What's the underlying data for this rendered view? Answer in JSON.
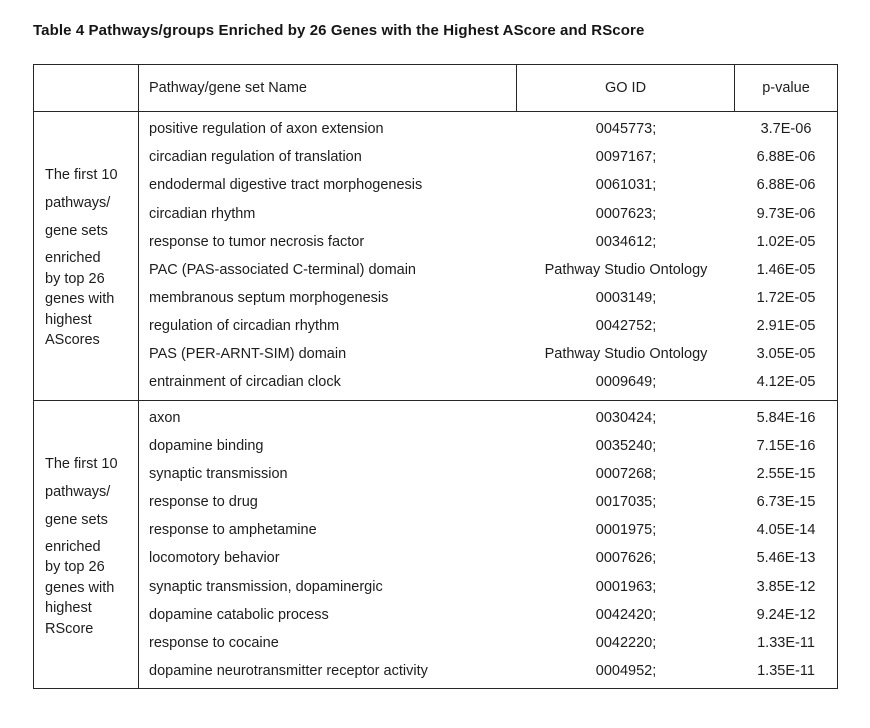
{
  "title": "Table 4 Pathways/groups Enriched by 26 Genes with the Highest AScore and RScore",
  "colors": {
    "background": "#ffffff",
    "text": "#1d1d1d",
    "border": "#262626"
  },
  "table": {
    "headers": {
      "row_label": "",
      "name": "Pathway/gene set Name",
      "go_id": "GO ID",
      "p_value": "p-value"
    },
    "groups": [
      {
        "label_part1": "The first 10\npathways/\ngene sets",
        "label_part2": "enriched\nby top 26\ngenes with\nhighest\nAScores",
        "rows": [
          {
            "name": "positive regulation of axon extension",
            "go_id": "0045773;",
            "p_value": "3.7E-06"
          },
          {
            "name": "circadian regulation of translation",
            "go_id": "0097167;",
            "p_value": "6.88E-06"
          },
          {
            "name": "endodermal digestive tract morphogenesis",
            "go_id": "0061031;",
            "p_value": "6.88E-06"
          },
          {
            "name": "circadian rhythm",
            "go_id": "0007623;",
            "p_value": "9.73E-06"
          },
          {
            "name": "response to tumor necrosis factor",
            "go_id": "0034612;",
            "p_value": "1.02E-05"
          },
          {
            "name": "PAC (PAS-associated C-terminal) domain",
            "go_id": "Pathway Studio Ontology",
            "p_value": "1.46E-05"
          },
          {
            "name": "membranous septum morphogenesis",
            "go_id": "0003149;",
            "p_value": "1.72E-05"
          },
          {
            "name": "regulation of circadian rhythm",
            "go_id": "0042752;",
            "p_value": "2.91E-05"
          },
          {
            "name": "PAS (PER-ARNT-SIM) domain",
            "go_id": "Pathway Studio Ontology",
            "p_value": "3.05E-05"
          },
          {
            "name": "entrainment of circadian clock",
            "go_id": "0009649;",
            "p_value": "4.12E-05"
          }
        ]
      },
      {
        "label_part1": "The first 10\npathways/\ngene sets",
        "label_part2": "enriched\nby top 26\ngenes with\nhighest\nRScore",
        "rows": [
          {
            "name": "axon",
            "go_id": "0030424;",
            "p_value": "5.84E-16"
          },
          {
            "name": "dopamine binding",
            "go_id": "0035240;",
            "p_value": "7.15E-16"
          },
          {
            "name": "synaptic transmission",
            "go_id": "0007268;",
            "p_value": "2.55E-15"
          },
          {
            "name": "response to drug",
            "go_id": "0017035;",
            "p_value": "6.73E-15"
          },
          {
            "name": "response to amphetamine",
            "go_id": "0001975;",
            "p_value": "4.05E-14"
          },
          {
            "name": "locomotory behavior",
            "go_id": "0007626;",
            "p_value": "5.46E-13"
          },
          {
            "name": "synaptic transmission, dopaminergic",
            "go_id": "0001963;",
            "p_value": "3.85E-12"
          },
          {
            "name": "dopamine catabolic process",
            "go_id": "0042420;",
            "p_value": "9.24E-12"
          },
          {
            "name": "response to cocaine",
            "go_id": "0042220;",
            "p_value": "1.33E-11"
          },
          {
            "name": "dopamine neurotransmitter receptor activity",
            "go_id": "0004952;",
            "p_value": "1.35E-11"
          }
        ]
      }
    ]
  }
}
